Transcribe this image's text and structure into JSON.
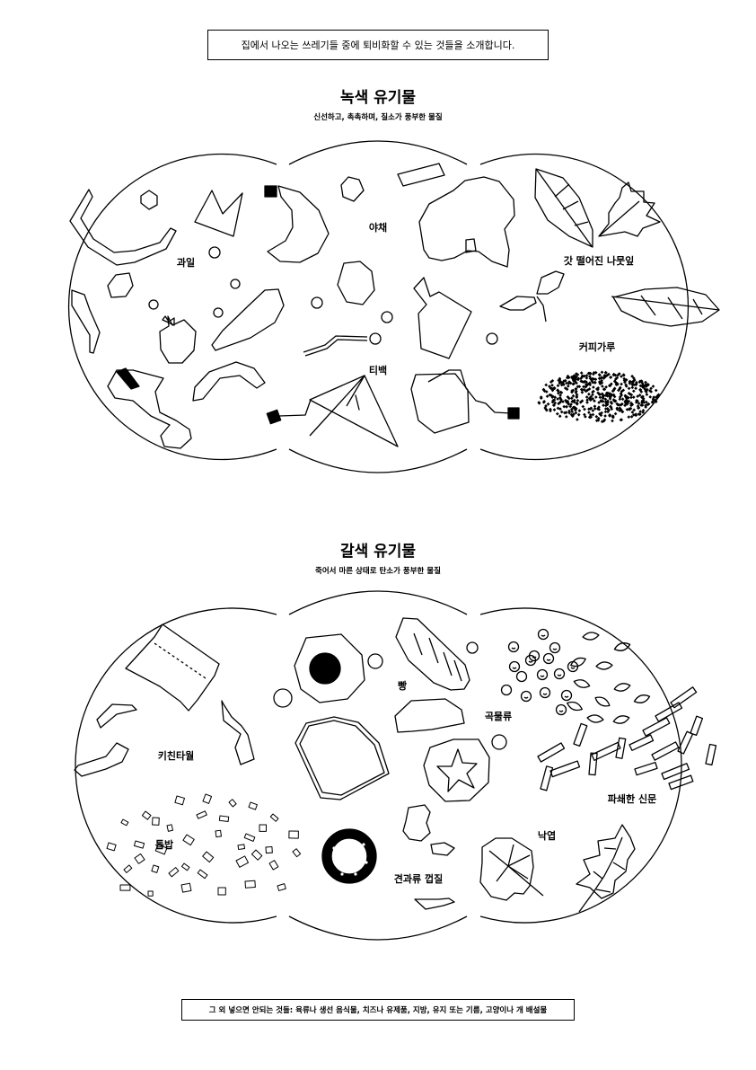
{
  "intro_text": "집에서 나오는 쓰레기들 중에 퇴비화할 수 있는 것들을 소개합니다.",
  "green": {
    "title": "녹색 유기물",
    "subtitle": "신선하고, 촉촉하며, 질소가 풍부한 물질",
    "items": [
      "과일",
      "야채",
      "갓 떨어진 나뭇잎",
      "티백",
      "커피가루"
    ]
  },
  "brown": {
    "title": "갈색 유기물",
    "subtitle": "죽어서 마른 상태로 탄소가 풍부한 물질",
    "items": [
      "키친타월",
      "빵",
      "곡물류",
      "톱밥",
      "파쇄한 신문",
      "낙엽",
      "견과류 껍질"
    ]
  },
  "footer_text": "그 외 넣으면 안되는 것들: 육류나 생선 음식물, 치즈나 유제품, 지방, 유지 또는 기름, 고양이나 개 배설물"
}
